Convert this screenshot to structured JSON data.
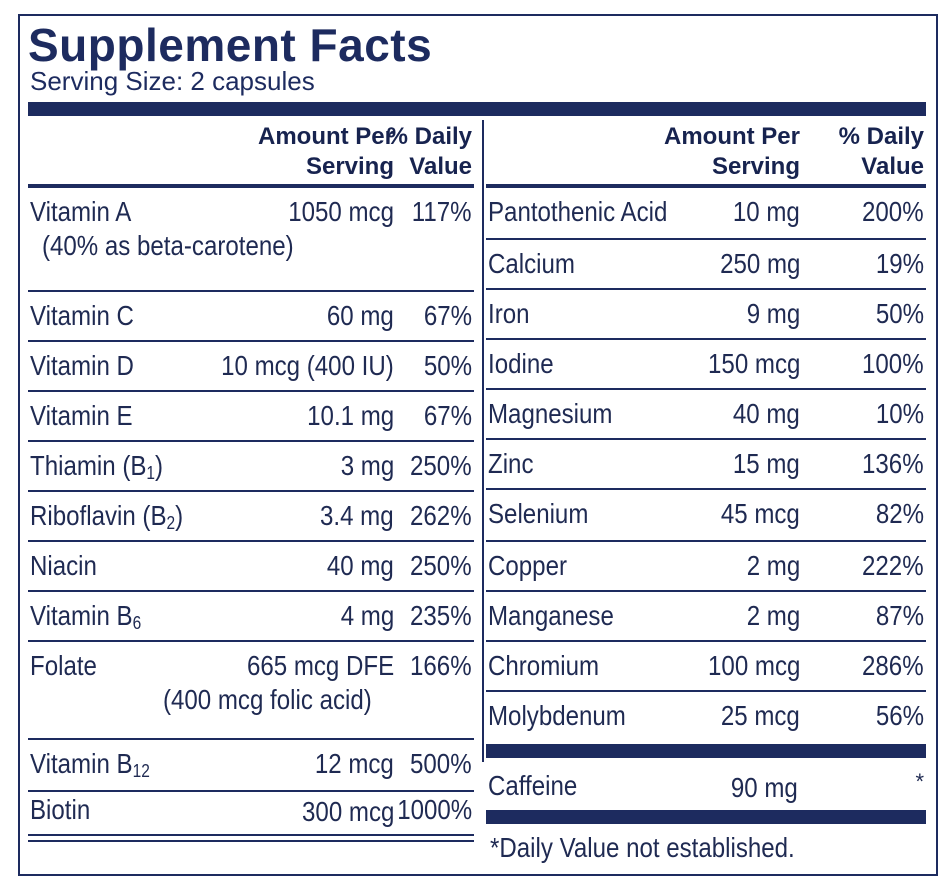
{
  "title": "Supplement Facts",
  "serving_size": "Serving Size: 2 capsules",
  "headers": {
    "amount_line1": "Amount Per",
    "amount_line2": "Serving",
    "dv_line1": "% Daily",
    "dv_line2": "Value"
  },
  "left": [
    {
      "name": "Vitamin A",
      "amount": "1050 mcg",
      "dv": "117%",
      "note": "(40% as beta-carotene)"
    },
    {
      "name": "Vitamin C",
      "amount": "60 mg",
      "dv": "67%"
    },
    {
      "name": "Vitamin D",
      "amount": "10 mcg (400 IU)",
      "dv": "50%"
    },
    {
      "name": "Vitamin E",
      "amount": "10.1 mg",
      "dv": "67%"
    },
    {
      "name": "Thiamin (B",
      "sub": "1",
      "suffix": ")",
      "amount": "3 mg",
      "dv": "250%"
    },
    {
      "name": "Riboflavin (B",
      "sub": "2",
      "suffix": ")",
      "amount": "3.4 mg",
      "dv": "262%"
    },
    {
      "name": "Niacin",
      "amount": "40 mg",
      "dv": "250%"
    },
    {
      "name": "Vitamin B",
      "sub": "6",
      "suffix": "",
      "amount": "4 mg",
      "dv": "235%"
    },
    {
      "name": "Folate",
      "amount": "665 mcg DFE",
      "dv": "166%",
      "note": "(400 mcg folic acid)"
    },
    {
      "name": "Vitamin B",
      "sub": "12",
      "suffix": "",
      "amount": "12 mcg",
      "dv": "500%"
    },
    {
      "name": "Biotin",
      "amount": "300 mcg",
      "dv": "1000%"
    }
  ],
  "right": [
    {
      "name": "Pantothenic Acid",
      "amount": "10 mg",
      "dv": "200%"
    },
    {
      "name": "Calcium",
      "amount": "250 mg",
      "dv": "19%"
    },
    {
      "name": "Iron",
      "amount": "9 mg",
      "dv": "50%"
    },
    {
      "name": "Iodine",
      "amount": "150 mcg",
      "dv": "100%"
    },
    {
      "name": "Magnesium",
      "amount": "40 mg",
      "dv": "10%"
    },
    {
      "name": "Zinc",
      "amount": "15 mg",
      "dv": "136%"
    },
    {
      "name": "Selenium",
      "amount": "45 mcg",
      "dv": "82%"
    },
    {
      "name": "Copper",
      "amount": "2 mg",
      "dv": "222%"
    },
    {
      "name": "Manganese",
      "amount": "2 mg",
      "dv": "87%"
    },
    {
      "name": "Chromium",
      "amount": "100 mcg",
      "dv": "286%"
    },
    {
      "name": "Molybdenum",
      "amount": "25 mcg",
      "dv": "56%"
    }
  ],
  "caffeine": {
    "name": "Caffeine",
    "amount": "90 mg",
    "dv": "*"
  },
  "footnote": "*Daily Value not established.",
  "colors": {
    "navy": "#1d2b5f",
    "text": "#1f2a52"
  }
}
